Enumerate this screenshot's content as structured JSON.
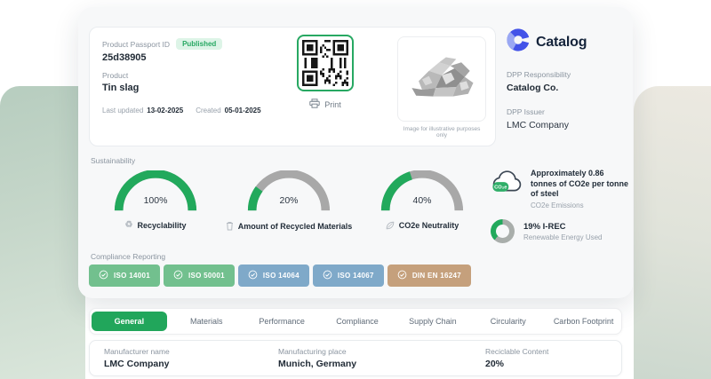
{
  "passport": {
    "id_label": "Product Passport ID",
    "status": "Published",
    "id": "25d38905",
    "product_label": "Product",
    "product_name": "Tin slag",
    "last_updated_label": "Last updated",
    "last_updated": "13-02-2025",
    "created_label": "Created",
    "created": "05-01-2025",
    "print_label": "Print",
    "image_caption": "Image for illustrative purposes only"
  },
  "brand": {
    "name": "Catalog",
    "responsibility_label": "DPP Responsibility",
    "responsibility": "Catalog Co.",
    "issuer_label": "DPP Issuer",
    "issuer": "LMC Company"
  },
  "sustainability": {
    "title": "Sustainability",
    "gauges": [
      {
        "value": 100,
        "display": "100%",
        "label": "Recyclability",
        "icon": "recycle-icon"
      },
      {
        "value": 20,
        "display": "20%",
        "label": "Amount of Recycled Materials",
        "icon": "trash-icon"
      },
      {
        "value": 40,
        "display": "40%",
        "label": "CO2e Neutrality",
        "icon": "leaf-icon"
      }
    ],
    "emissions": {
      "cloud_text": "CO₂e",
      "statement": "Approximately 0.86 tonnes of CO2e per tonne of steel",
      "label": "CO2e Emissions"
    },
    "renewable": {
      "percent": 19,
      "value": "19% I-REC",
      "label": "Renewable Energy Used"
    }
  },
  "compliance": {
    "title": "Compliance Reporting",
    "badges": [
      {
        "label": "ISO 14001",
        "color": "#72c08e"
      },
      {
        "label": "ISO 50001",
        "color": "#72c08e"
      },
      {
        "label": "ISO 14064",
        "color": "#7fa9c9"
      },
      {
        "label": "ISO 14067",
        "color": "#7fa9c9"
      },
      {
        "label": "DIN EN 16247",
        "color": "#c5a07c"
      }
    ]
  },
  "tabs": [
    {
      "label": "General",
      "active": true
    },
    {
      "label": "Materials",
      "active": false
    },
    {
      "label": "Performance",
      "active": false
    },
    {
      "label": "Compliance",
      "active": false
    },
    {
      "label": "Supply Chain",
      "active": false
    },
    {
      "label": "Circularity",
      "active": false
    },
    {
      "label": "Carbon Footprint",
      "active": false
    }
  ],
  "details": {
    "fields": [
      {
        "label": "Manufacturer name",
        "value": "LMC Company"
      },
      {
        "label": "Manufacturing place",
        "value": "Munich, Germany"
      },
      {
        "label": "Reciclable Content",
        "value": "20%"
      }
    ]
  },
  "colors": {
    "accent_green": "#21a65b",
    "gauge_green": "#22a95c",
    "gauge_gray": "#a8a8a8",
    "status_green": "#27a862",
    "badge_green": "#72c08e",
    "badge_blue": "#7fa9c9",
    "badge_tan": "#c5a07c",
    "logo_blue": "#4353e8"
  }
}
